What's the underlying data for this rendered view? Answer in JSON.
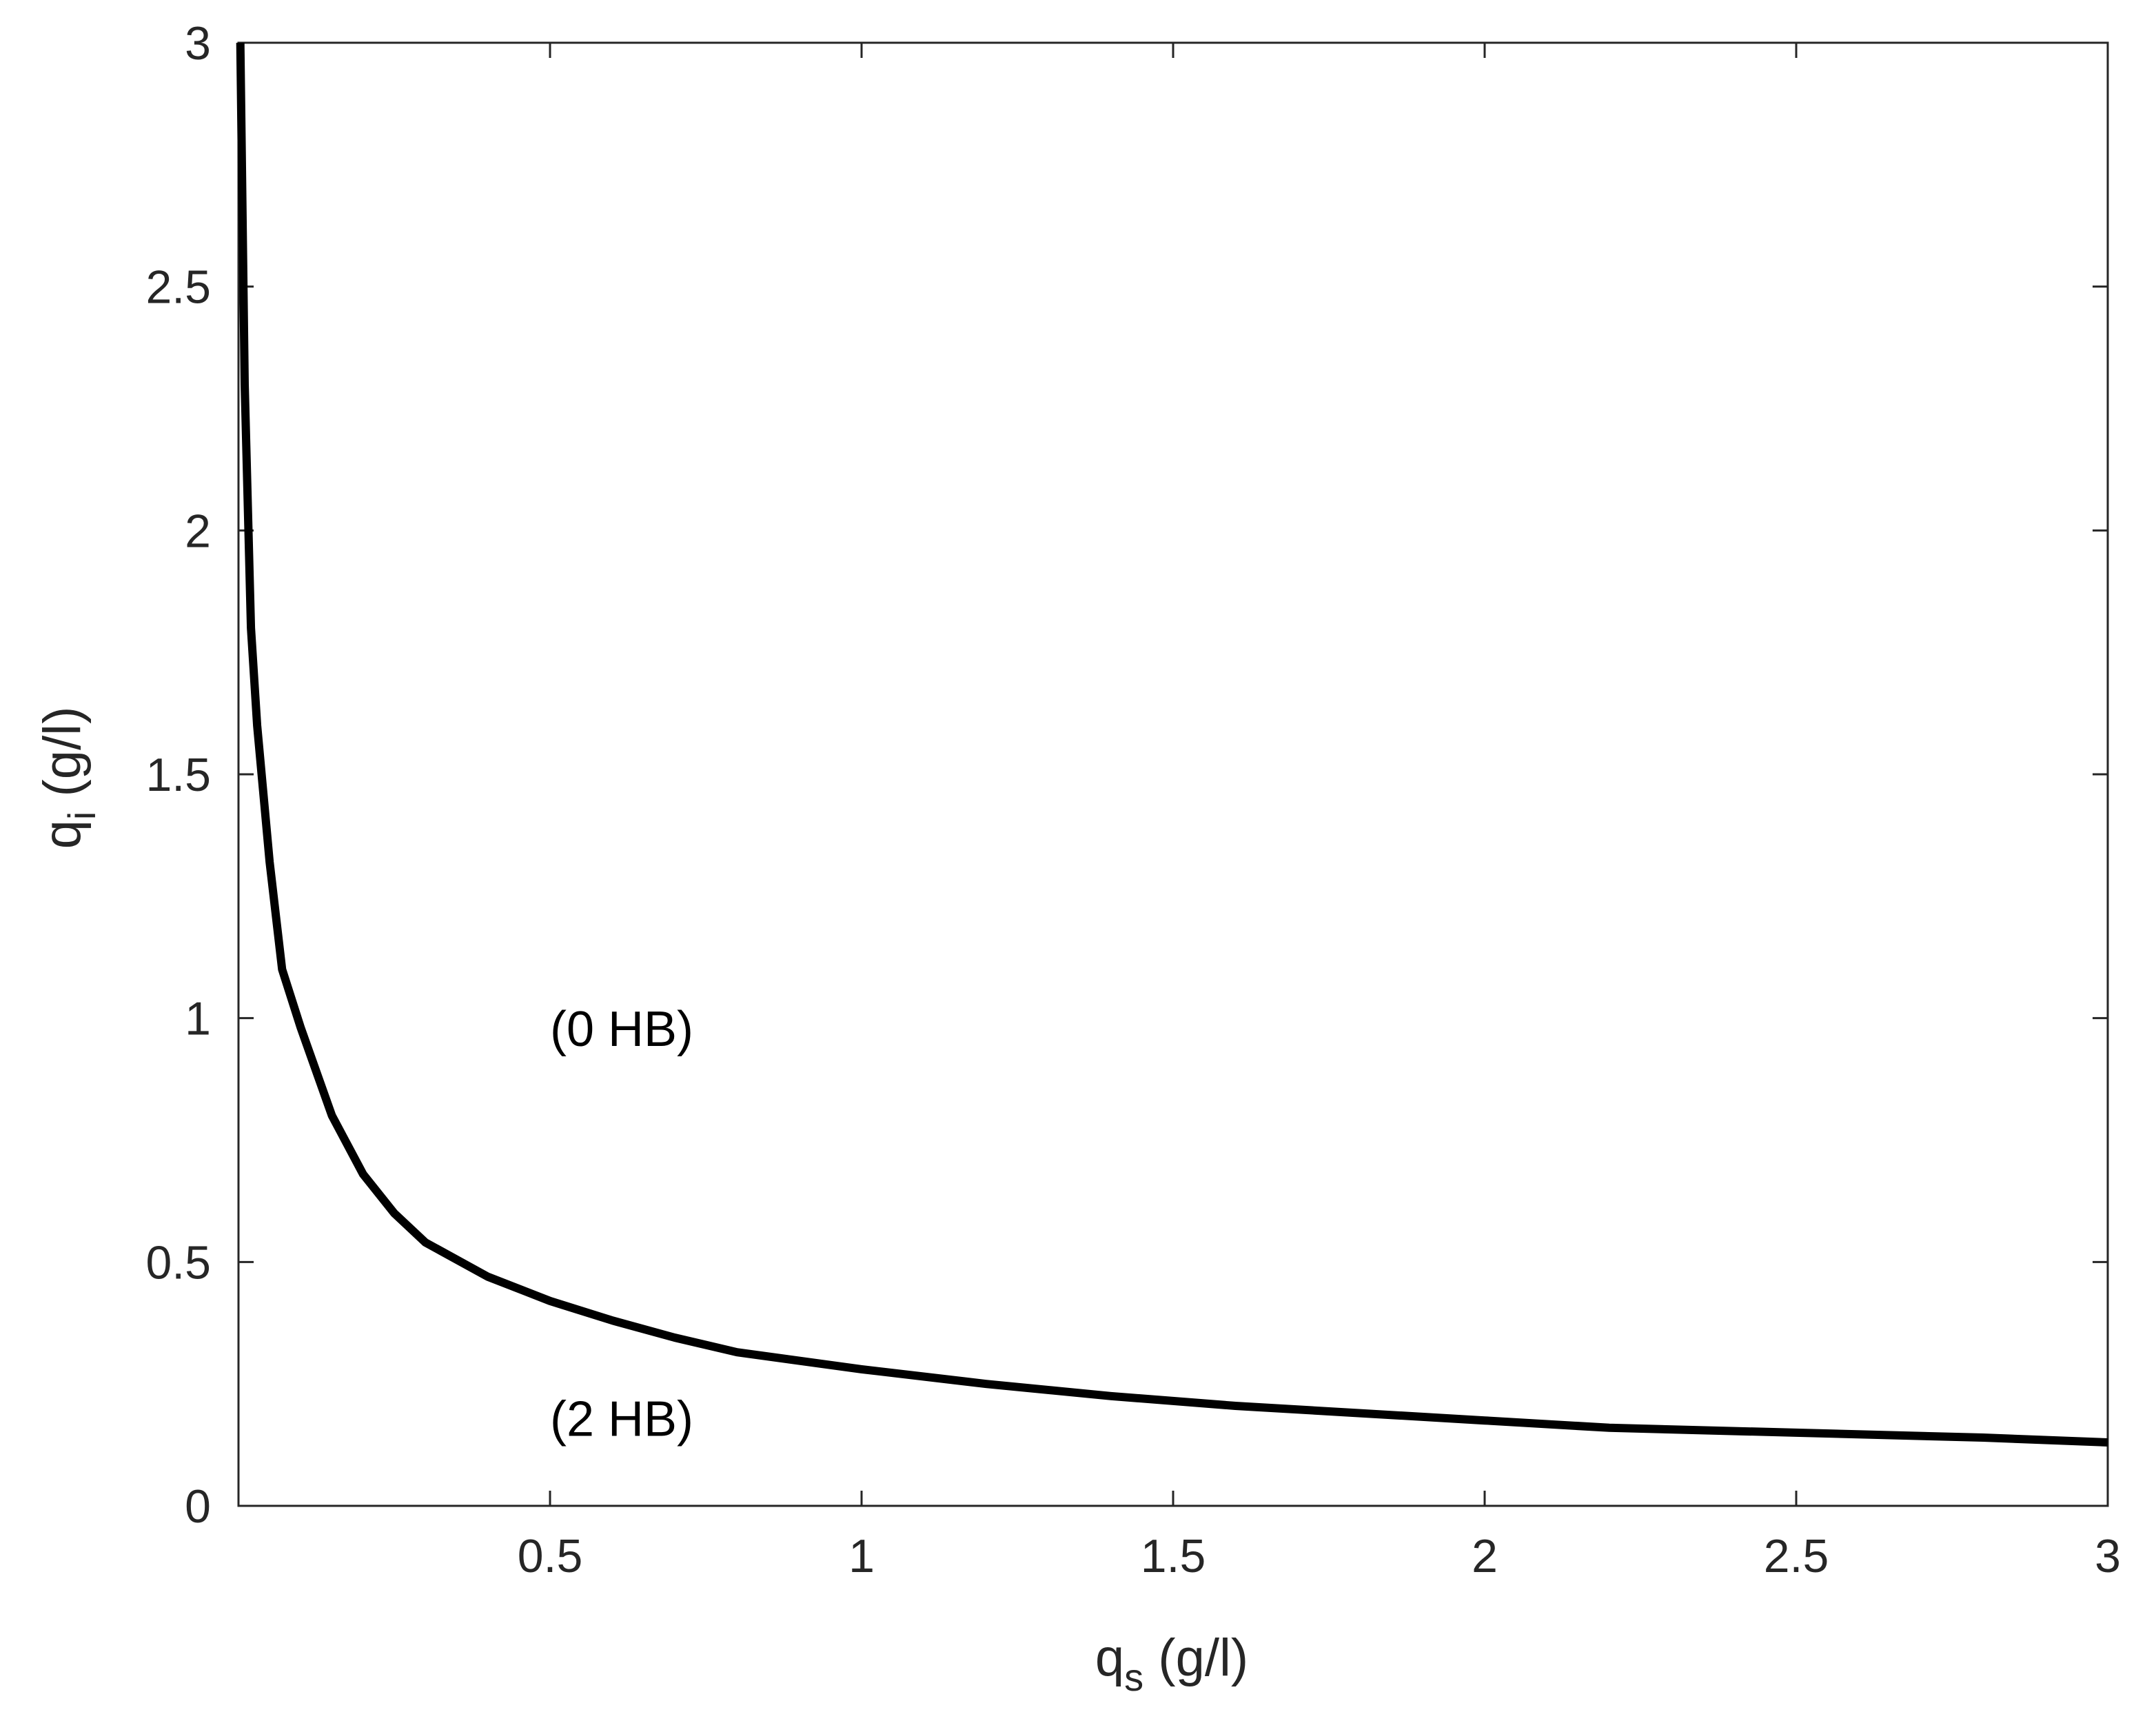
{
  "chart_data": {
    "type": "line",
    "title": "",
    "xlabel": {
      "base": "q",
      "sub": "s",
      "rest": " (g/l)"
    },
    "ylabel": {
      "base": "q",
      "sub": "i",
      "rest": " (g/l)"
    },
    "xlim": [
      0,
      3
    ],
    "ylim": [
      0,
      3
    ],
    "xticks": [
      0.5,
      1,
      1.5,
      2,
      2.5,
      3
    ],
    "xtick_labels": [
      "0.5",
      "1",
      "1.5",
      "2",
      "2.5",
      "3"
    ],
    "yticks": [
      0,
      0.5,
      1,
      1.5,
      2,
      2.5,
      3
    ],
    "ytick_labels": [
      "0",
      "0.5",
      "1",
      "1.5",
      "2",
      "2.5",
      "3"
    ],
    "grid": false,
    "legend": null,
    "series": [
      {
        "color": "#000000",
        "x": [
          0.003,
          0.005,
          0.01,
          0.02,
          0.03,
          0.05,
          0.07,
          0.1,
          0.15,
          0.2,
          0.25,
          0.3,
          0.4,
          0.5,
          0.6,
          0.7,
          0.8,
          1.0,
          1.2,
          1.4,
          1.6,
          1.8,
          2.0,
          2.2,
          2.5,
          2.8,
          3.0
        ],
        "y": [
          3.0,
          2.8,
          2.3,
          1.8,
          1.6,
          1.32,
          1.1,
          0.98,
          0.8,
          0.68,
          0.6,
          0.54,
          0.47,
          0.42,
          0.38,
          0.345,
          0.315,
          0.28,
          0.25,
          0.225,
          0.205,
          0.19,
          0.175,
          0.16,
          0.15,
          0.14,
          0.13
        ]
      }
    ],
    "annotations": [
      {
        "text": "(0 HB)",
        "x": 0.5,
        "y": 0.98
      },
      {
        "text": "(2 HB)",
        "x": 0.5,
        "y": 0.18
      }
    ]
  }
}
